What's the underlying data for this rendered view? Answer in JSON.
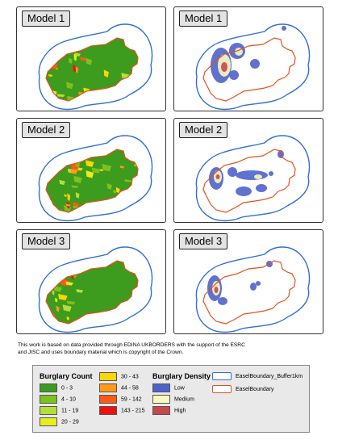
{
  "panels": [
    {
      "label": "Model 1",
      "type": "count"
    },
    {
      "label": "Model 1",
      "type": "density"
    },
    {
      "label": "Model 2",
      "type": "count"
    },
    {
      "label": "Model 2",
      "type": "density"
    },
    {
      "label": "Model 3",
      "type": "count"
    },
    {
      "label": "Model 3",
      "type": "density"
    }
  ],
  "attribution": {
    "line1": "This work is based on data provided through EDINA UKBORDERS with the support of the ESRC",
    "line2": "and JISC and uses boundary material which is copyright of the Crown."
  },
  "legend": {
    "count_title": "Burglary Count",
    "count_classes": [
      {
        "label": "0 - 3",
        "color": "#3d9b1d"
      },
      {
        "label": "4 - 10",
        "color": "#7cc21d"
      },
      {
        "label": "11 - 19",
        "color": "#b6dd3a"
      },
      {
        "label": "20 - 29",
        "color": "#e6ee1e"
      },
      {
        "label": "30 - 43",
        "color": "#ffd700"
      },
      {
        "label": "44 - 58",
        "color": "#ff9a1a"
      },
      {
        "label": "59 - 142",
        "color": "#ff5a14"
      },
      {
        "label": "143 - 215",
        "color": "#ee1111"
      }
    ],
    "density_title": "Burglary Density",
    "density_classes": [
      {
        "label": "Low",
        "color": "#4d63c9"
      },
      {
        "label": "Medium",
        "color": "#fbf7c0"
      },
      {
        "label": "High",
        "color": "#c8494b"
      }
    ],
    "boundary_classes": [
      {
        "label": "EaselBoundary_Buffer1km",
        "color": "#2f6fd6"
      },
      {
        "label": "EaselBoundary",
        "color": "#e0531c"
      }
    ]
  },
  "colors": {
    "buffer": "#2f6fd6",
    "boundary": "#e0531c",
    "count_fill": "#3d9b1d"
  }
}
